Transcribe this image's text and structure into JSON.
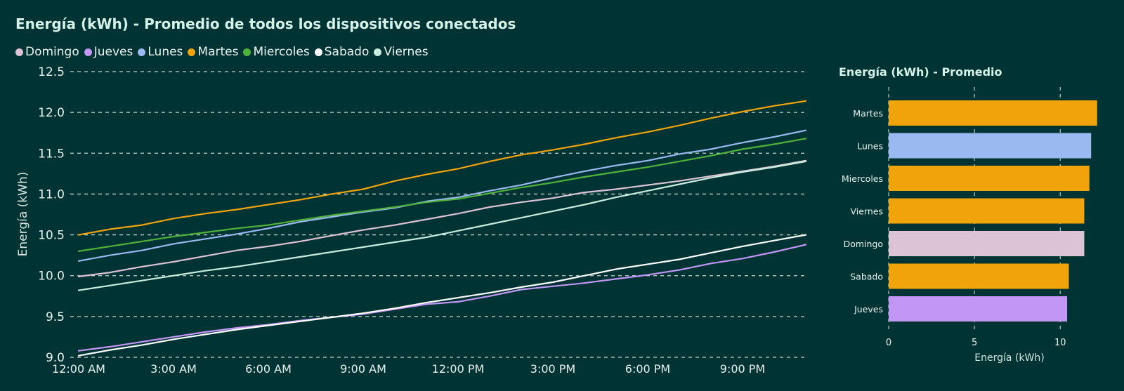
{
  "colors": {
    "background": "#003333",
    "grid": "#e6efe9",
    "text": "#e8f1ee"
  },
  "chart_data": [
    {
      "type": "line",
      "title": "Energía (kWh) - Promedio de todos los dispositivos conectados",
      "ylabel": "Energía (kWh)",
      "xlabel": "",
      "ylim": [
        9.0,
        12.5
      ],
      "yticks": [
        "9.0",
        "9.5",
        "10.0",
        "10.5",
        "11.0",
        "11.5",
        "12.0",
        "12.5"
      ],
      "x_hours": [
        0,
        23
      ],
      "xticks": [
        {
          "label": "12:00 AM",
          "hour": 0
        },
        {
          "label": "3:00 AM",
          "hour": 3
        },
        {
          "label": "6:00 AM",
          "hour": 6
        },
        {
          "label": "9:00 AM",
          "hour": 9
        },
        {
          "label": "12:00 PM",
          "hour": 12
        },
        {
          "label": "3:00 PM",
          "hour": 15
        },
        {
          "label": "6:00 PM",
          "hour": 18
        },
        {
          "label": "9:00 PM",
          "hour": 21
        }
      ],
      "grid": "horizontal-dashed",
      "legend": "top-left",
      "series": [
        {
          "name": "Domingo",
          "color": "#dcc3d6",
          "start": 9.99,
          "end": 11.41,
          "values": [
            9.99,
            10.04,
            10.11,
            10.17,
            10.24,
            10.31,
            10.36,
            10.42,
            10.49,
            10.56,
            10.62,
            10.69,
            10.76,
            10.84,
            10.9,
            10.95,
            11.02,
            11.06,
            11.11,
            11.16,
            11.22,
            11.28,
            11.34,
            11.41
          ]
        },
        {
          "name": "Jueves",
          "color": "#c296f5",
          "start": 9.08,
          "end": 10.38,
          "values": [
            9.08,
            9.13,
            9.19,
            9.25,
            9.31,
            9.36,
            9.4,
            9.45,
            9.49,
            9.53,
            9.59,
            9.65,
            9.68,
            9.75,
            9.83,
            9.87,
            9.91,
            9.96,
            10.01,
            10.07,
            10.15,
            10.21,
            10.29,
            10.38
          ]
        },
        {
          "name": "Lunes",
          "color": "#9ab9f0",
          "start": 10.18,
          "end": 11.78,
          "values": [
            10.18,
            10.25,
            10.31,
            10.39,
            10.45,
            10.51,
            10.58,
            10.66,
            10.72,
            10.78,
            10.83,
            10.91,
            10.96,
            11.04,
            11.11,
            11.2,
            11.28,
            11.35,
            11.41,
            11.49,
            11.55,
            11.63,
            11.7,
            11.78
          ]
        },
        {
          "name": "Martes",
          "color": "#f0a30a",
          "start": 10.5,
          "end": 12.14,
          "values": [
            10.5,
            10.57,
            10.62,
            10.7,
            10.76,
            10.81,
            10.87,
            10.93,
            11.0,
            11.06,
            11.16,
            11.24,
            11.31,
            11.4,
            11.48,
            11.54,
            11.61,
            11.69,
            11.76,
            11.84,
            11.93,
            12.01,
            12.08,
            12.14
          ]
        },
        {
          "name": "Miercoles",
          "color": "#4fb33a",
          "start": 10.3,
          "end": 11.68,
          "values": [
            10.3,
            10.36,
            10.42,
            10.48,
            10.53,
            10.58,
            10.62,
            10.68,
            10.74,
            10.79,
            10.84,
            10.9,
            10.94,
            11.01,
            11.08,
            11.14,
            11.21,
            11.27,
            11.33,
            11.4,
            11.47,
            11.55,
            11.61,
            11.68
          ]
        },
        {
          "name": "Sabado",
          "color": "#ffffff",
          "start": 9.02,
          "end": 10.5,
          "values": [
            9.02,
            9.09,
            9.15,
            9.22,
            9.28,
            9.34,
            9.39,
            9.44,
            9.49,
            9.54,
            9.6,
            9.67,
            9.73,
            9.79,
            9.86,
            9.92,
            10.0,
            10.08,
            10.14,
            10.2,
            10.28,
            10.36,
            10.43,
            10.5
          ]
        },
        {
          "name": "Viernes",
          "color": "#c8ecde",
          "start": 9.82,
          "end": 11.4,
          "values": [
            9.82,
            9.88,
            9.94,
            10.0,
            10.06,
            10.11,
            10.17,
            10.23,
            10.29,
            10.35,
            10.41,
            10.47,
            10.55,
            10.63,
            10.71,
            10.79,
            10.87,
            10.96,
            11.04,
            11.12,
            11.2,
            11.27,
            11.33,
            11.4
          ]
        }
      ]
    },
    {
      "type": "bar",
      "orientation": "horizontal",
      "title": "Energía (kWh) - Promedio",
      "xlabel": "Energía (kWh)",
      "xlim": [
        0,
        12.2
      ],
      "xticks": [
        0,
        5,
        10
      ],
      "grid": "vertical-dashed",
      "categories": [
        "Martes",
        "Lunes",
        "Miercoles",
        "Viernes",
        "Domingo",
        "Sabado",
        "Jueves"
      ],
      "values": [
        12.15,
        11.8,
        11.7,
        11.4,
        11.4,
        10.5,
        10.4
      ],
      "colors": [
        "#f0a30a",
        "#9ab9f0",
        "#f0a30a",
        "#f0a30a",
        "#dcc3d6",
        "#f0a30a",
        "#c296f5"
      ]
    }
  ]
}
